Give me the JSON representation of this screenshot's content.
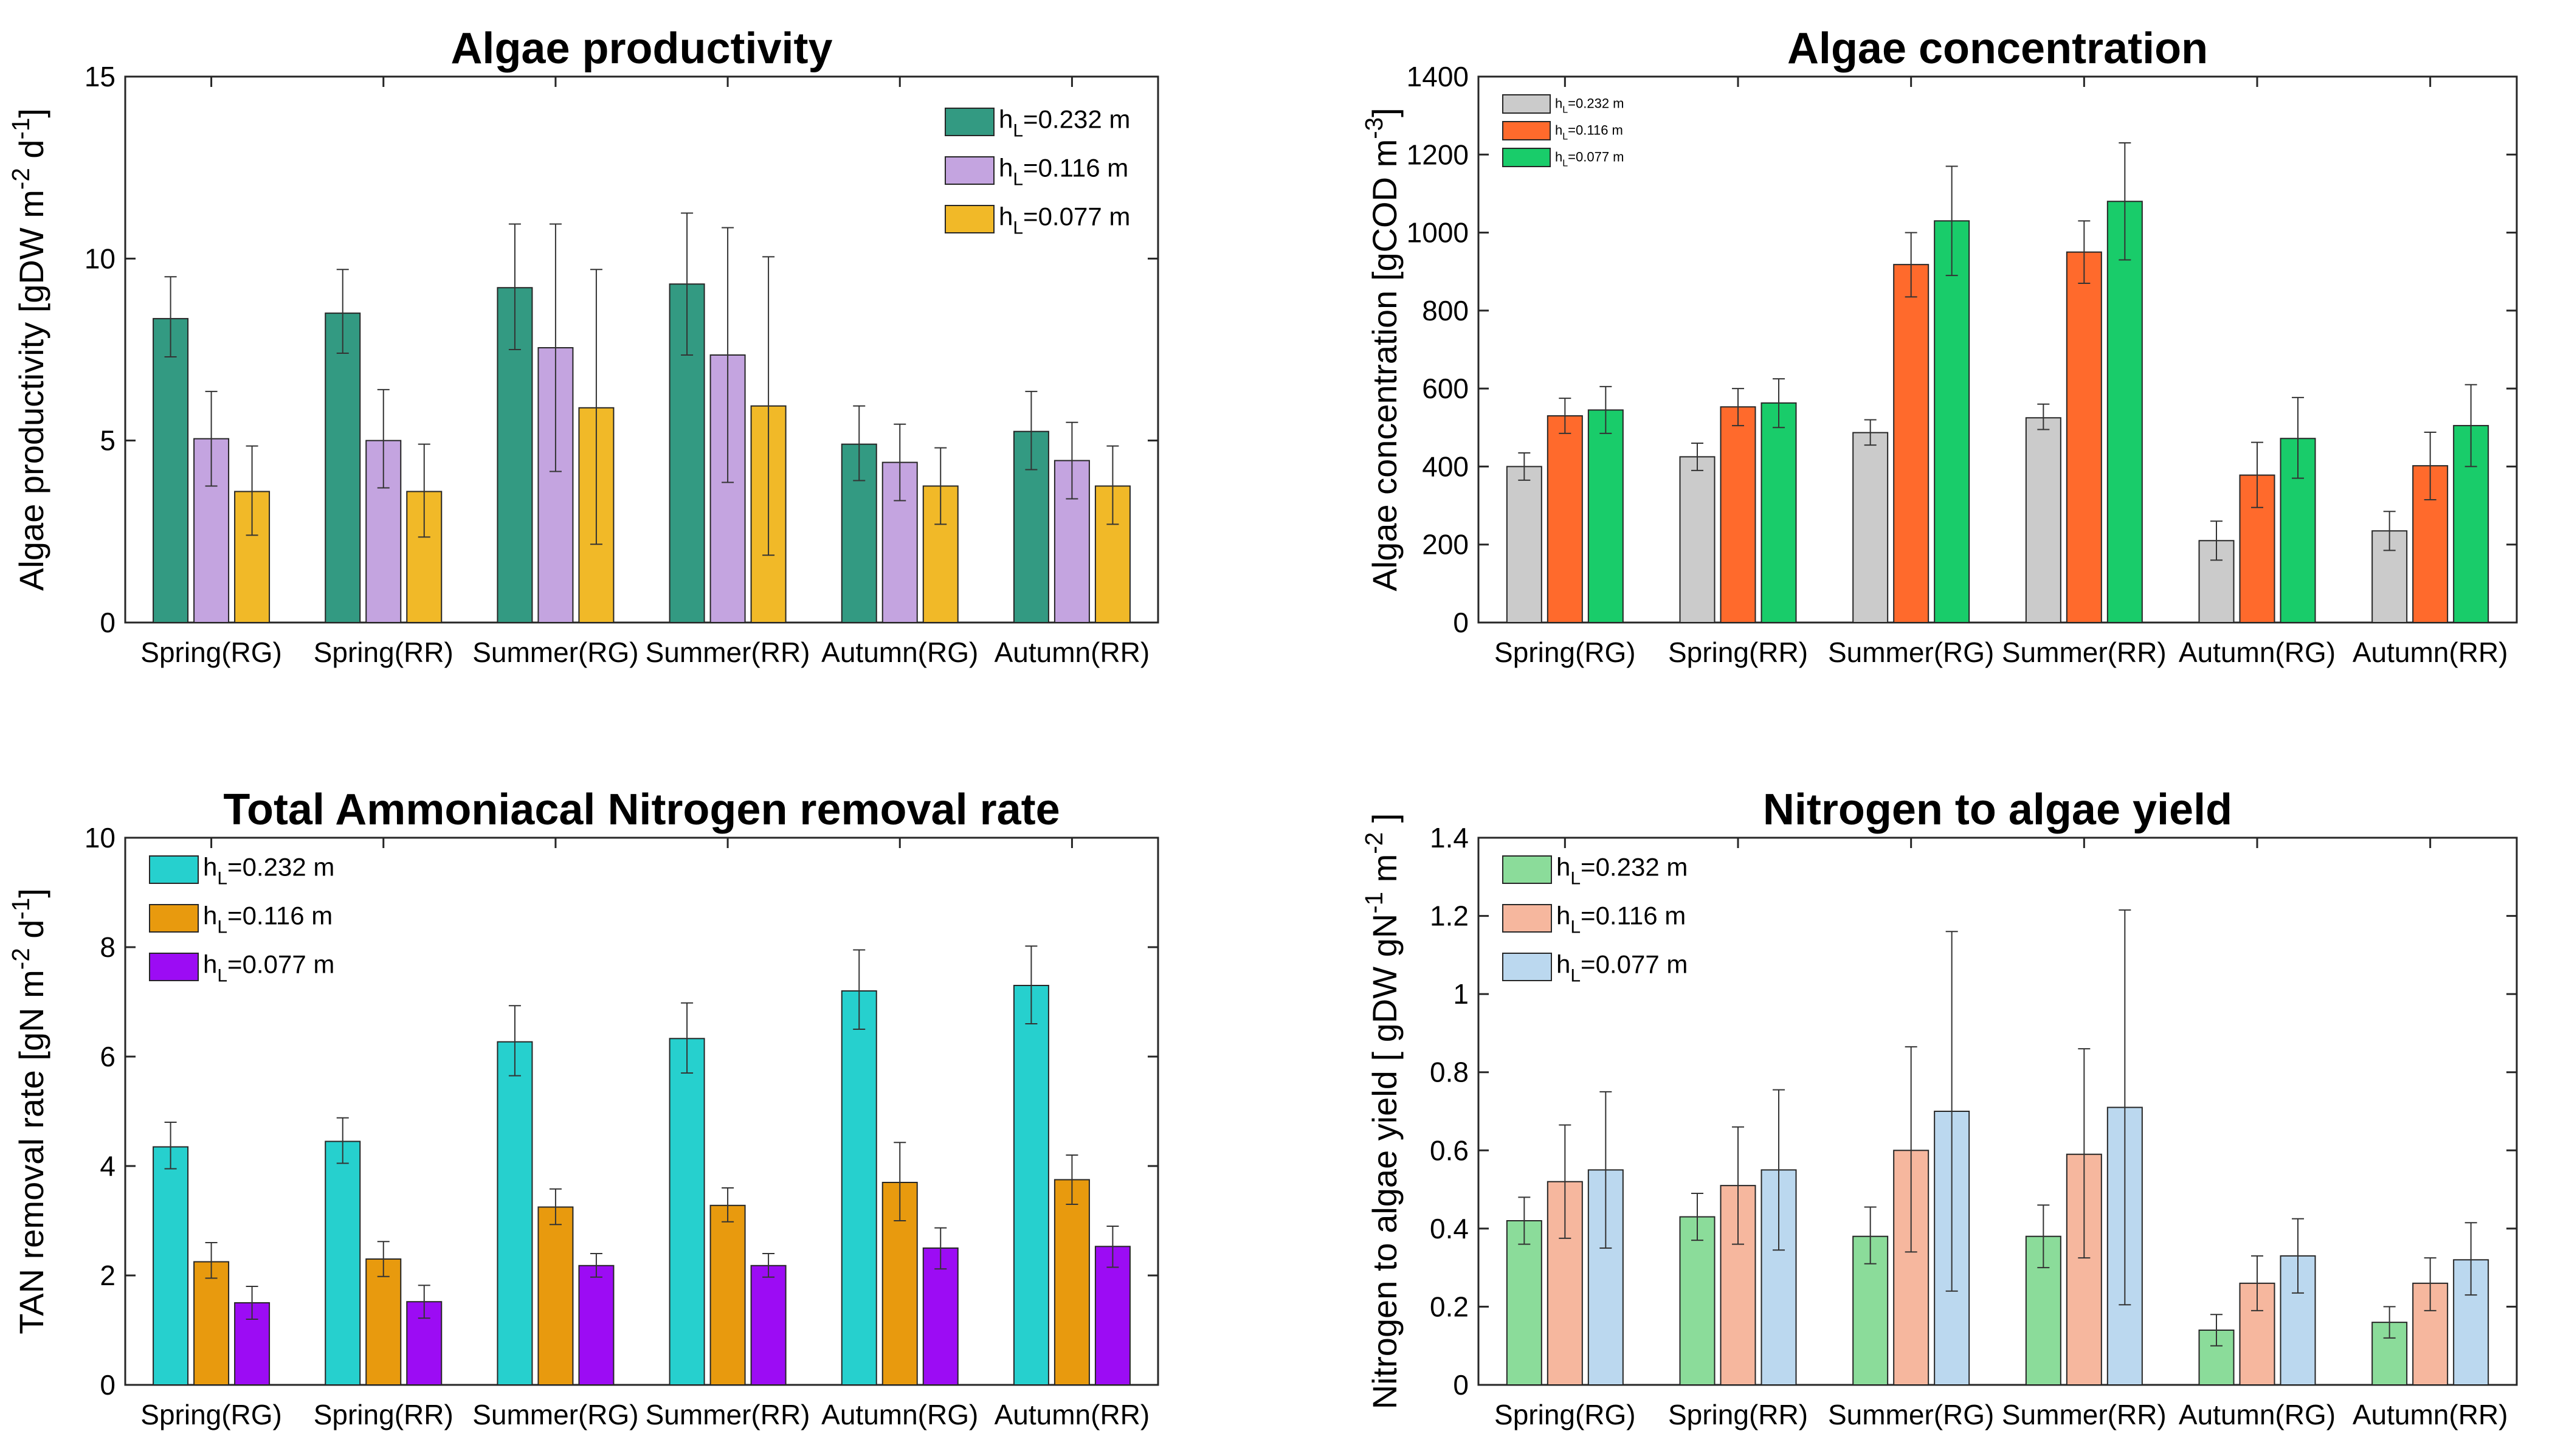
{
  "figure": {
    "categories": [
      "Spring(RG)",
      "Spring(RR)",
      "Summer(RG)",
      "Summer(RR)",
      "Autumn(RG)",
      "Autumn(RR)"
    ]
  },
  "chart_data": [
    {
      "type": "bar",
      "title": "Algae productivity",
      "ylabel": "Algae productivity [gDW m-2 d-1]",
      "xlabel": "",
      "ylim": [
        0,
        15
      ],
      "yticks": [
        0,
        5,
        10,
        15
      ],
      "ytick_labels": [
        "0",
        "5",
        "10",
        "15"
      ],
      "legend_position": "top-right",
      "legend_size": "large",
      "categories": [
        "Spring(RG)",
        "Spring(RR)",
        "Summer(RG)",
        "Summer(RR)",
        "Autumn(RG)",
        "Autumn(RR)"
      ],
      "series": [
        {
          "name": "hL=0.232 m",
          "subscript_name": "h",
          "sub": "L",
          "rest": "=0.232 m",
          "color": "#339A82",
          "values": [
            8.35,
            8.5,
            9.2,
            9.3,
            4.9,
            5.25
          ],
          "err_low": [
            7.3,
            7.4,
            7.5,
            7.35,
            3.9,
            4.2
          ],
          "err_high": [
            9.5,
            9.7,
            10.95,
            11.25,
            5.95,
            6.35
          ]
        },
        {
          "name": "hL=0.116 m",
          "subscript_name": "h",
          "sub": "L",
          "rest": "=0.116 m",
          "color": "#C4A4E0",
          "values": [
            5.05,
            5.0,
            7.55,
            7.35,
            4.4,
            4.45
          ],
          "err_low": [
            3.75,
            3.7,
            4.15,
            3.85,
            3.35,
            3.4
          ],
          "err_high": [
            6.35,
            6.4,
            10.95,
            10.85,
            5.45,
            5.5
          ]
        },
        {
          "name": "hL=0.077 m",
          "subscript_name": "h",
          "sub": "L",
          "rest": "=0.077 m",
          "color": "#F1B928",
          "values": [
            3.6,
            3.6,
            5.9,
            5.95,
            3.75,
            3.75
          ],
          "err_low": [
            2.4,
            2.35,
            2.15,
            1.85,
            2.7,
            2.7
          ],
          "err_high": [
            4.85,
            4.9,
            9.7,
            10.05,
            4.8,
            4.85
          ]
        }
      ]
    },
    {
      "type": "bar",
      "title": "Algae concentration",
      "ylabel": "Algae concentration [gCOD m-3]",
      "xlabel": "",
      "ylim": [
        0,
        1400
      ],
      "yticks": [
        0,
        200,
        400,
        600,
        800,
        1000,
        1200,
        1400
      ],
      "ytick_labels": [
        "0",
        "200",
        "400",
        "600",
        "800",
        "1000",
        "1200",
        "1400"
      ],
      "legend_position": "top-left",
      "legend_size": "small",
      "categories": [
        "Spring(RG)",
        "Spring(RR)",
        "Summer(RG)",
        "Summer(RR)",
        "Autumn(RG)",
        "Autumn(RR)"
      ],
      "series": [
        {
          "name": "hL=0.232 m",
          "subscript_name": "h",
          "sub": "L",
          "rest": "=0.232 m",
          "color": "#CBCBCB",
          "values": [
            400,
            425,
            487,
            525,
            210,
            235
          ],
          "err_low": [
            365,
            390,
            455,
            495,
            160,
            185
          ],
          "err_high": [
            435,
            460,
            520,
            560,
            260,
            285
          ]
        },
        {
          "name": "hL=0.116 m",
          "subscript_name": "h",
          "sub": "L",
          "rest": "=0.116 m",
          "color": "#FF6A2C",
          "values": [
            530,
            553,
            918,
            950,
            378,
            402
          ],
          "err_low": [
            485,
            505,
            835,
            870,
            295,
            315
          ],
          "err_high": [
            575,
            600,
            1000,
            1030,
            462,
            488
          ]
        },
        {
          "name": "hL=0.077 m",
          "subscript_name": "h",
          "sub": "L",
          "rest": "=0.077 m",
          "color": "#19CC6A",
          "values": [
            545,
            563,
            1030,
            1080,
            472,
            505
          ],
          "err_low": [
            485,
            500,
            890,
            930,
            370,
            400
          ],
          "err_high": [
            605,
            625,
            1170,
            1230,
            577,
            610
          ]
        }
      ]
    },
    {
      "type": "bar",
      "title": "Total Ammoniacal Nitrogen removal rate",
      "ylabel": "TAN removal rate [gN m-2 d-1]",
      "xlabel": "",
      "ylim": [
        0,
        10
      ],
      "yticks": [
        0,
        2,
        4,
        6,
        8,
        10
      ],
      "ytick_labels": [
        "0",
        "2",
        "4",
        "6",
        "8",
        "10"
      ],
      "legend_position": "top-left",
      "legend_size": "large",
      "categories": [
        "Spring(RG)",
        "Spring(RR)",
        "Summer(RG)",
        "Summer(RR)",
        "Autumn(RG)",
        "Autumn(RR)"
      ],
      "series": [
        {
          "name": "hL=0.232 m",
          "subscript_name": "h",
          "sub": "L",
          "rest": "=0.232 m",
          "color": "#26D0CE",
          "values": [
            4.35,
            4.45,
            6.27,
            6.33,
            7.2,
            7.3
          ],
          "err_low": [
            3.95,
            4.05,
            5.65,
            5.7,
            6.5,
            6.6
          ],
          "err_high": [
            4.8,
            4.88,
            6.93,
            6.98,
            7.95,
            8.02
          ]
        },
        {
          "name": "hL=0.116 m",
          "subscript_name": "h",
          "sub": "L",
          "rest": "=0.116 m",
          "color": "#E89A0E",
          "values": [
            2.25,
            2.3,
            3.25,
            3.28,
            3.7,
            3.75
          ],
          "err_low": [
            1.95,
            1.98,
            2.93,
            2.98,
            3.0,
            3.3
          ],
          "err_high": [
            2.6,
            2.62,
            3.58,
            3.6,
            4.43,
            4.2
          ]
        },
        {
          "name": "hL=0.077 m",
          "subscript_name": "h",
          "sub": "L",
          "rest": "=0.077 m",
          "color": "#9C0CF4",
          "values": [
            1.5,
            1.52,
            2.18,
            2.18,
            2.5,
            2.53
          ],
          "err_low": [
            1.2,
            1.22,
            1.97,
            1.97,
            2.12,
            2.15
          ],
          "err_high": [
            1.8,
            1.82,
            2.4,
            2.4,
            2.87,
            2.9
          ]
        }
      ]
    },
    {
      "type": "bar",
      "title": "Nitrogen to algae yield",
      "ylabel": "Nitrogen to algae yield [ gDW gN-1 m-2 ]",
      "xlabel": "",
      "ylim": [
        0,
        1.4
      ],
      "yticks": [
        0,
        0.2,
        0.4,
        0.6,
        0.8,
        1.0,
        1.2,
        1.4
      ],
      "ytick_labels": [
        "0",
        "0.2",
        "0.4",
        "0.6",
        "0.8",
        "1",
        "1.2",
        "1.4"
      ],
      "legend_position": "top-left",
      "legend_size": "large",
      "categories": [
        "Spring(RG)",
        "Spring(RR)",
        "Summer(RG)",
        "Summer(RR)",
        "Autumn(RG)",
        "Autumn(RR)"
      ],
      "series": [
        {
          "name": "hL=0.232 m",
          "subscript_name": "h",
          "sub": "L",
          "rest": "=0.232 m",
          "color": "#8BDC9A",
          "values": [
            0.42,
            0.43,
            0.38,
            0.38,
            0.14,
            0.16
          ],
          "err_low": [
            0.36,
            0.37,
            0.31,
            0.3,
            0.1,
            0.12
          ],
          "err_high": [
            0.48,
            0.49,
            0.455,
            0.46,
            0.18,
            0.2
          ]
        },
        {
          "name": "hL=0.116 m",
          "subscript_name": "h",
          "sub": "L",
          "rest": "=0.116 m",
          "color": "#F6B79E",
          "values": [
            0.52,
            0.51,
            0.6,
            0.59,
            0.26,
            0.26
          ],
          "err_low": [
            0.375,
            0.36,
            0.34,
            0.325,
            0.19,
            0.19
          ],
          "err_high": [
            0.665,
            0.66,
            0.865,
            0.86,
            0.33,
            0.325
          ]
        },
        {
          "name": "hL=0.077 m",
          "subscript_name": "h",
          "sub": "L",
          "rest": "=0.077 m",
          "color": "#BBD8EF",
          "values": [
            0.55,
            0.55,
            0.7,
            0.71,
            0.33,
            0.32
          ],
          "err_low": [
            0.35,
            0.345,
            0.24,
            0.205,
            0.235,
            0.23
          ],
          "err_high": [
            0.75,
            0.755,
            1.16,
            1.215,
            0.425,
            0.415
          ]
        }
      ]
    }
  ]
}
